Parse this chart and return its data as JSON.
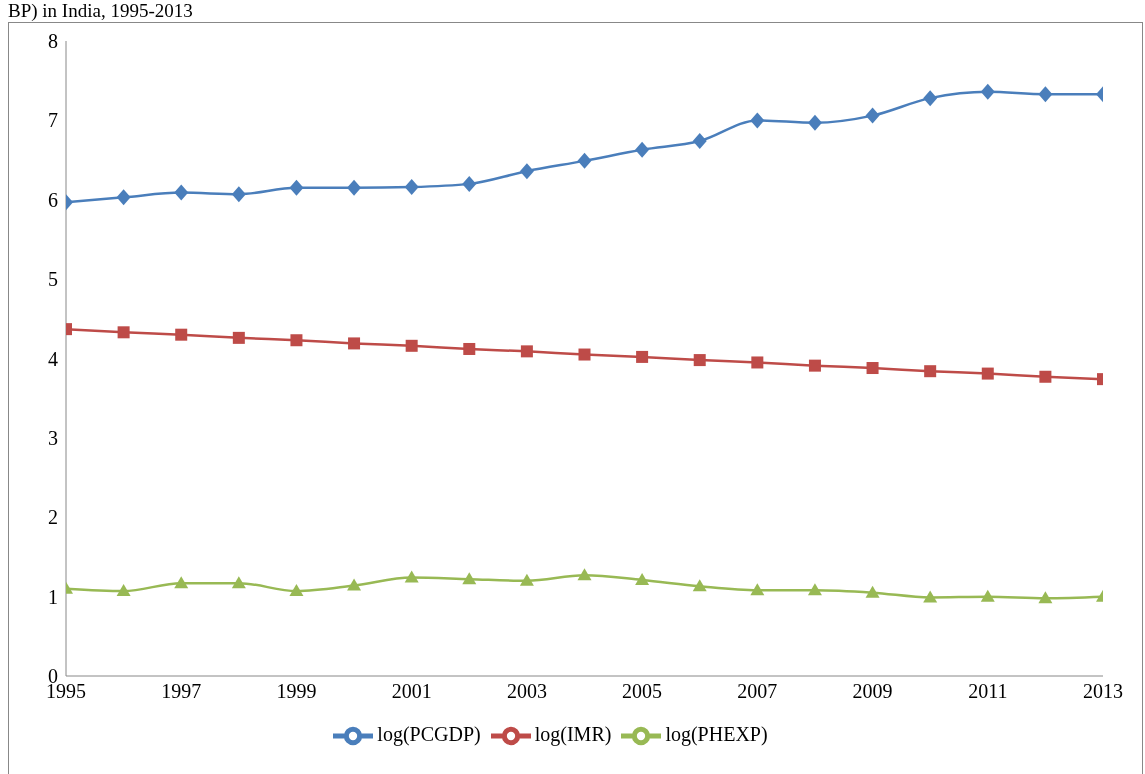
{
  "chart_data": {
    "type": "line",
    "title": "BP) in India, 1995-2013",
    "x": [
      1995,
      1996,
      1997,
      1998,
      1999,
      2000,
      2001,
      2002,
      2003,
      2004,
      2005,
      2006,
      2007,
      2008,
      2009,
      2010,
      2011,
      2012,
      2013
    ],
    "series": [
      {
        "name": "log(PCGDP)",
        "color": "#4a7ebb",
        "marker": "diamond",
        "values": [
          5.97,
          6.03,
          6.09,
          6.07,
          6.15,
          6.15,
          6.16,
          6.2,
          6.36,
          6.49,
          6.63,
          6.74,
          7.0,
          6.97,
          7.06,
          7.28,
          7.36,
          7.33,
          7.33
        ]
      },
      {
        "name": "log(IMR)",
        "color": "#be4b48",
        "marker": "square",
        "values": [
          4.37,
          4.33,
          4.3,
          4.26,
          4.23,
          4.19,
          4.16,
          4.12,
          4.09,
          4.05,
          4.02,
          3.98,
          3.95,
          3.91,
          3.88,
          3.84,
          3.81,
          3.77,
          3.74
        ]
      },
      {
        "name": "log(PHEXP)",
        "color": "#98b954",
        "marker": "triangle",
        "values": [
          1.1,
          1.07,
          1.17,
          1.17,
          1.07,
          1.14,
          1.24,
          1.22,
          1.2,
          1.27,
          1.21,
          1.13,
          1.08,
          1.08,
          1.05,
          0.99,
          1.0,
          0.98,
          1.0
        ]
      }
    ],
    "xlim": [
      1995,
      2013
    ],
    "xticks": [
      1995,
      1997,
      1999,
      2001,
      2003,
      2005,
      2007,
      2009,
      2011,
      2013
    ],
    "ylim": [
      0,
      8
    ],
    "yticks": [
      0,
      1,
      2,
      3,
      4,
      5,
      6,
      7,
      8
    ],
    "grid": false,
    "legend": "bottom",
    "line_style": "solid"
  }
}
